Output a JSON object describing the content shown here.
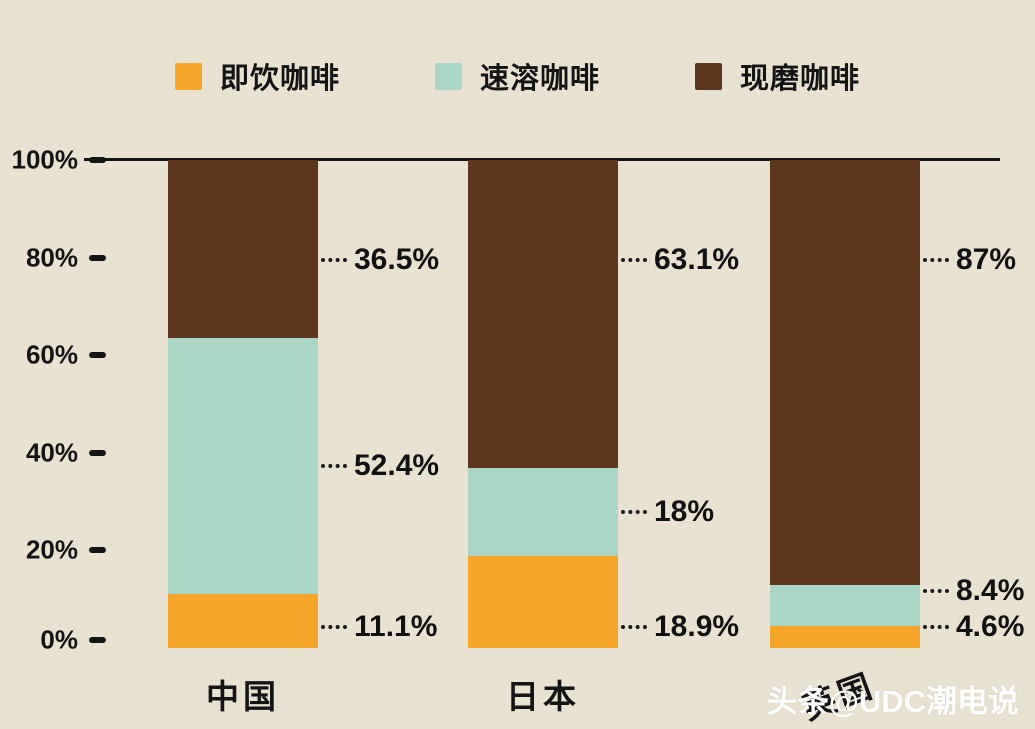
{
  "chart_data": {
    "type": "bar",
    "stacked": true,
    "categories": [
      "中国",
      "日本",
      "英国"
    ],
    "series": [
      {
        "name": "即饮咖啡",
        "color": "#F6A62A",
        "values": [
          11.1,
          18.9,
          4.6
        ]
      },
      {
        "name": "速溶咖啡",
        "color": "#ABD6C6",
        "values": [
          52.4,
          18.0,
          8.4
        ]
      },
      {
        "name": "现磨咖啡",
        "color": "#5E3721",
        "values": [
          36.5,
          63.1,
          87.0
        ]
      }
    ],
    "value_labels": [
      [
        "11.1%",
        "18.9%",
        "4.6%"
      ],
      [
        "52.4%",
        "18%",
        "8.4%"
      ],
      [
        "36.5%",
        "63.1%",
        "87%"
      ]
    ],
    "y_axis": {
      "min": 0,
      "max": 100,
      "ticks": [
        "100%",
        "80%",
        "60%",
        "40%",
        "20%",
        "0%"
      ]
    },
    "legend_position": "top",
    "grid": false
  },
  "watermark": "头条@UDC潮电说",
  "colors": {
    "background": "#E9E2D0",
    "text": "#141414",
    "watermark": "#FFFFFF",
    "axis": "#141414"
  }
}
